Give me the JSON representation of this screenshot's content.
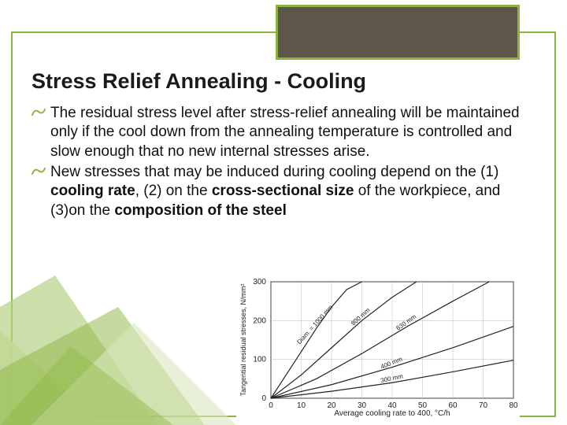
{
  "title": "Stress Relief Annealing - Cooling",
  "bullets": [
    {
      "pre": "The",
      "rest": " residual stress level after stress-relief annealing will be maintained only if the cool down from the annealing temperature is controlled and slow enough that no new internal stresses arise."
    },
    {
      "pre": "New",
      "rest_parts": [
        " stresses that may be induced during cooling depend on the (1) ",
        "cooling rate",
        ", (2) on the ",
        "cross-sectional size",
        " of the workpiece, and (3)on the ",
        "composition of the steel"
      ]
    }
  ],
  "colors": {
    "accent": "#8bb53f",
    "header_fill": "#5e5648",
    "text": "#111111",
    "grid": "#888888",
    "curve": "#222222",
    "decor_light": "#d9e8bd",
    "decor_mid": "#b7d186",
    "decor_dark": "#8bb53f"
  },
  "chart": {
    "type": "line",
    "ylabel": "Tangential residual stresses, N/mm²",
    "xlabel": "Average cooling rate to 400, °C/h",
    "xlim": [
      0,
      80
    ],
    "ylim": [
      0,
      300
    ],
    "xtick_step": 10,
    "ytick_step": 100,
    "grid_color": "#bbbbbb",
    "background_color": "#ffffff",
    "line_color": "#222222",
    "line_width": 1.2,
    "label_fontsize": 9,
    "tick_fontsize": 10,
    "series": [
      {
        "label": "Diam. = 1000 mm",
        "label_angle": -48,
        "points": [
          [
            0,
            0
          ],
          [
            5,
            60
          ],
          [
            10,
            120
          ],
          [
            15,
            180
          ],
          [
            20,
            235
          ],
          [
            25,
            280
          ],
          [
            30,
            300
          ]
        ]
      },
      {
        "label": "800 mm",
        "label_angle": -42,
        "points": [
          [
            0,
            0
          ],
          [
            10,
            60
          ],
          [
            20,
            130
          ],
          [
            30,
            200
          ],
          [
            40,
            260
          ],
          [
            48,
            300
          ]
        ]
      },
      {
        "label": "630 mm",
        "label_angle": -35,
        "points": [
          [
            0,
            0
          ],
          [
            15,
            50
          ],
          [
            30,
            115
          ],
          [
            45,
            185
          ],
          [
            60,
            250
          ],
          [
            72,
            300
          ]
        ]
      },
      {
        "label": "400 mm",
        "label_angle": -22,
        "points": [
          [
            0,
            0
          ],
          [
            20,
            35
          ],
          [
            40,
            80
          ],
          [
            60,
            130
          ],
          [
            80,
            185
          ]
        ]
      },
      {
        "label": "300 mm",
        "label_angle": -12,
        "points": [
          [
            0,
            0
          ],
          [
            20,
            18
          ],
          [
            40,
            40
          ],
          [
            60,
            68
          ],
          [
            80,
            98
          ]
        ]
      }
    ]
  }
}
